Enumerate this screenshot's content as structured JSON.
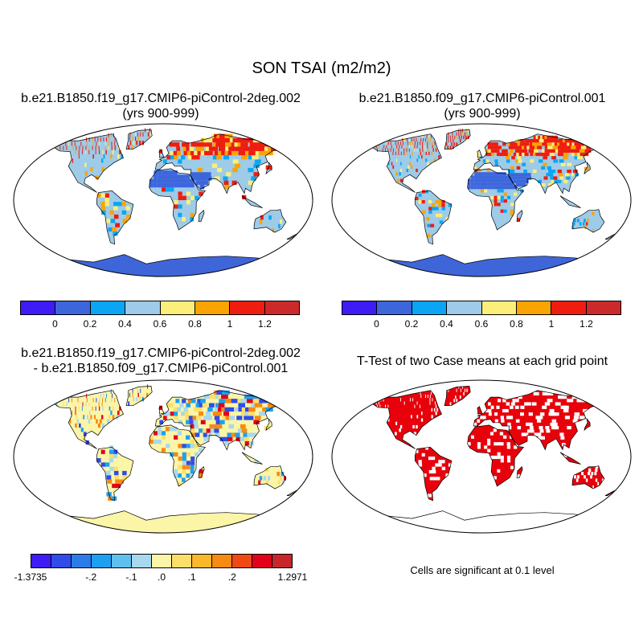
{
  "title": "SON TSAI (m2/m2)",
  "panels": [
    {
      "title_line1": "b.e21.B1850.f19_g17.CMIP6-piControl-2deg.002",
      "title_line2": "(yrs 900-999)",
      "land_color": "#9ecbe8",
      "polar_color": "#3f66d8",
      "hot_color": "#e2201c"
    },
    {
      "title_line1": "b.e21.B1850.f09_g17.CMIP6-piControl.001",
      "title_line2": "(yrs 900-999)",
      "land_color": "#9ecbe8",
      "polar_color": "#3f66d8",
      "hot_color": "#e2201c"
    },
    {
      "title_line1": "b.e21.B1850.f19_g17.CMIP6-piControl-2deg.002",
      "title_line2": "- b.e21.B1850.f09_g17.CMIP6-piControl.001",
      "land_color": "#fbf5a8",
      "polar_color": "#fbf5a8"
    },
    {
      "title_line1": "T-Test of two Case means at each grid point",
      "land_color": "#e8000b",
      "note": "Cells are significant at 0.1 level"
    }
  ],
  "colorbar_top": {
    "colors": [
      "#3d1cf5",
      "#3d66dc",
      "#0aa6f5",
      "#9ecbe8",
      "#fbef7a",
      "#f9a400",
      "#ef1c10",
      "#cc2a2a"
    ],
    "labels": [
      "0",
      "0.2",
      "0.4",
      "0.6",
      "0.8",
      "1",
      "1.2"
    ]
  },
  "colorbar_diff": {
    "colors": [
      "#3d1cf5",
      "#2f4ce8",
      "#2a7de8",
      "#1ea0f2",
      "#5fc0ee",
      "#a8d8ee",
      "#fbf5a8",
      "#fcdf6a",
      "#fbb82a",
      "#f78a10",
      "#f04a14",
      "#e2001a",
      "#c8262a"
    ],
    "labels": [
      "-1.3735",
      "-.2",
      "-.1",
      ".0",
      ".1",
      ".2",
      "1.2971"
    ]
  }
}
